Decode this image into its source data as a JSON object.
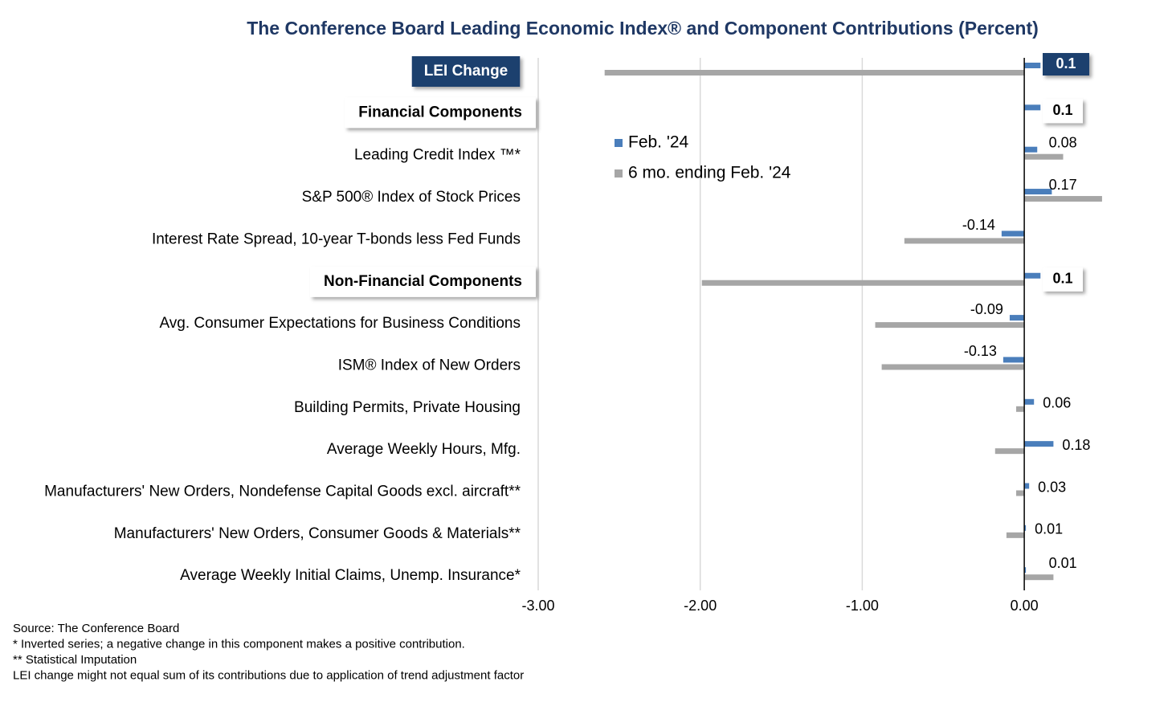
{
  "chart_data": {
    "type": "barh",
    "title": "The Conference Board Leading Economic Index® and Component Contributions (Percent)",
    "categories": [
      "LEI Change",
      "Financial Components",
      "Leading Credit Index  ™*",
      "S&P 500® Index of Stock Prices",
      "Interest Rate Spread, 10-year T-bonds less Fed Funds",
      "Non-Financial Components",
      "Avg. Consumer Expectations for Business Conditions",
      "ISM® Index of New Orders",
      "Building Permits, Private Housing",
      "Average Weekly Hours, Mfg.",
      "Manufacturers' New Orders, Nondefense Capital Goods excl. aircraft**",
      "Manufacturers' New Orders, Consumer Goods & Materials**",
      "Average Weekly Initial Claims, Unemp. Insurance*"
    ],
    "series": [
      {
        "name": "Feb. '24",
        "color": "#4a7ebb",
        "values": [
          0.1,
          0.1,
          0.08,
          0.17,
          -0.14,
          0.1,
          -0.09,
          -0.13,
          0.06,
          0.18,
          0.03,
          0.01,
          0.01
        ]
      },
      {
        "name": "6 mo. ending Feb. '24",
        "color": "#a6a6a6",
        "values": [
          -2.59,
          null,
          0.24,
          0.48,
          -0.74,
          -1.99,
          -0.92,
          -0.88,
          -0.05,
          -0.18,
          -0.05,
          -0.11,
          0.18
        ]
      }
    ],
    "xlim": [
      -3,
      0.5
    ],
    "xticks": [
      {
        "value": -3,
        "label": "-3.00"
      },
      {
        "value": -2,
        "label": "-2.00"
      },
      {
        "value": -1,
        "label": "-1.00"
      },
      {
        "value": 0,
        "label": "0.00"
      }
    ],
    "grid": true,
    "legend": "upper left",
    "notes": [
      "Source: The Conference Board",
      "*  Inverted series; a negative change in this component makes a positive contribution.",
      "**  Statistical Imputation",
      "LEI change might not equal sum of its contributions due to application of trend adjustment factor"
    ]
  }
}
